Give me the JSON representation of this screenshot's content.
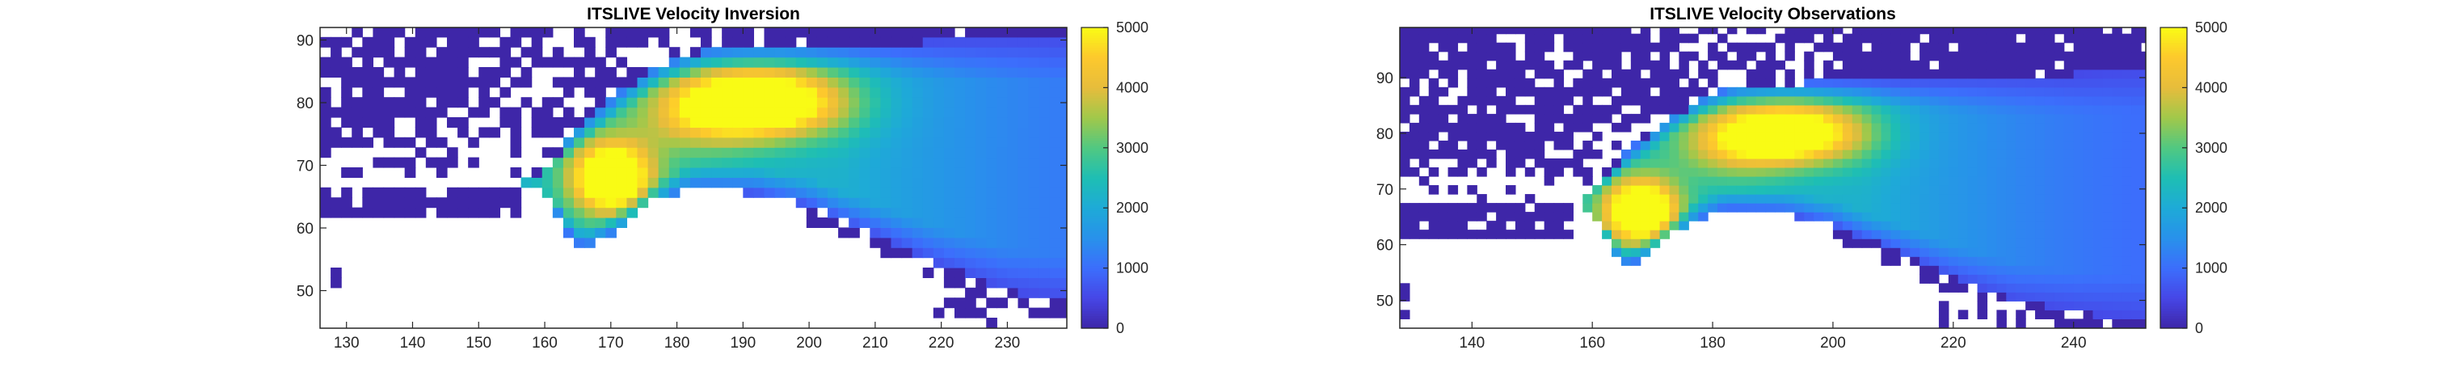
{
  "chart_data": [
    {
      "type": "heatmap",
      "title": "ITSLIVE Velocity Inversion",
      "xlabel": "",
      "ylabel": "",
      "xlim": [
        126,
        239
      ],
      "ylim": [
        44,
        92
      ],
      "xticks": [
        130,
        140,
        150,
        160,
        170,
        180,
        190,
        200,
        210,
        220,
        230
      ],
      "yticks": [
        50,
        60,
        70,
        80,
        90
      ],
      "colorbar": {
        "clim": [
          0,
          5000
        ],
        "ticks": [
          0,
          1000,
          2000,
          3000,
          4000,
          5000
        ],
        "colormap": "parula"
      },
      "colors": {
        "nodata": "#ffffff",
        "low": "#3e26a8",
        "mid": "#1fb2be",
        "high": "#f9fb15"
      },
      "features": {
        "main_peak": {
          "x": 192,
          "y": 80,
          "value": 4600
        },
        "outlet_peak": {
          "x": 170,
          "y": 68,
          "value": 4400
        }
      }
    },
    {
      "type": "heatmap",
      "title": "ITSLIVE Velocity Observations",
      "xlabel": "",
      "ylabel": "",
      "xlim": [
        128,
        252
      ],
      "ylim": [
        45,
        99
      ],
      "xticks": [
        140,
        160,
        180,
        200,
        220,
        240
      ],
      "yticks": [
        50,
        60,
        70,
        80,
        90
      ],
      "colorbar": {
        "clim": [
          0,
          5000
        ],
        "ticks": [
          0,
          1000,
          2000,
          3000,
          4000,
          5000
        ],
        "colormap": "parula"
      },
      "colors": {
        "nodata": "#ffffff",
        "low": "#3e26a8",
        "mid": "#1fb2be",
        "high": "#f9fb15"
      },
      "features": {
        "main_peak": {
          "x": 192,
          "y": 80,
          "value": 4200
        },
        "outlet_peak": {
          "x": 168,
          "y": 66,
          "value": 4500
        }
      }
    }
  ]
}
